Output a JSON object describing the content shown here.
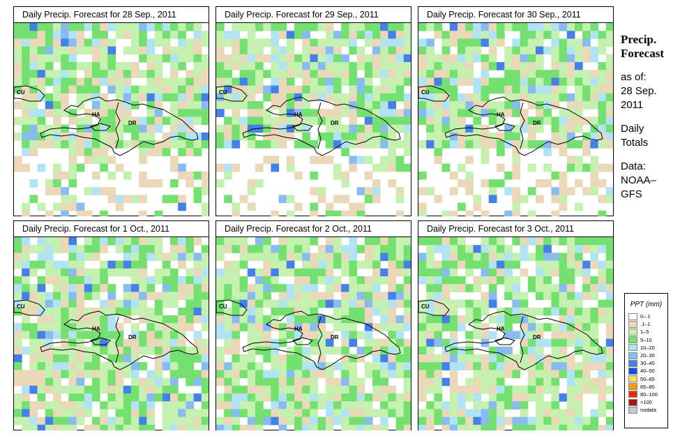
{
  "panels": [
    {
      "title": "Daily Precip. Forecast for  28 Sep., 2011",
      "labels": {
        "cu": "CU",
        "ha": "HA",
        "dr": "DR"
      }
    },
    {
      "title": "Daily Precip. Forecast for  29 Sep., 2011",
      "labels": {
        "cu": "CU",
        "ha": "HA",
        "dr": "DR"
      }
    },
    {
      "title": "Daily Precip. Forecast for  30 Sep., 2011",
      "labels": {
        "cu": "CU",
        "ha": "HA",
        "dr": "DR"
      }
    },
    {
      "title": "Daily Precip. Forecast for  1 Oct., 2011",
      "labels": {
        "cu": "CU",
        "ha": "HA",
        "dr": "DR"
      }
    },
    {
      "title": "Daily Precip. Forecast for  2 Oct., 2011",
      "labels": {
        "cu": "CU",
        "ha": "HA",
        "dr": "DR"
      }
    },
    {
      "title": "Daily Precip. Forecast for  3 Oct., 2011",
      "labels": {
        "cu": "CU",
        "ha": "HA",
        "dr": "DR"
      }
    }
  ],
  "sidebar": {
    "heading_line1": "Precip.",
    "heading_line2": "Forecast",
    "asof": "as of:",
    "date_line1": "28 Sep.",
    "date_line2": "2011",
    "totals_line1": "Daily",
    "totals_line2": "Totals",
    "data_line1": "Data:",
    "data_line2": "NOAA–",
    "data_line3": "GFS"
  },
  "legend": {
    "title": "PPT (mm)",
    "items": [
      {
        "label": "0–.1",
        "color": "#ffffff"
      },
      {
        "label": ".1–1",
        "color": "#ead8b8"
      },
      {
        "label": "1–5",
        "color": "#c4f0b0"
      },
      {
        "label": "5–10",
        "color": "#74e070"
      },
      {
        "label": "10–20",
        "color": "#b0e4f4"
      },
      {
        "label": "20–30",
        "color": "#88bcf0"
      },
      {
        "label": "30–40",
        "color": "#4480e8"
      },
      {
        "label": "40–50",
        "color": "#1850d8"
      },
      {
        "label": "50–65",
        "color": "#f4dc68"
      },
      {
        "label": "65–80",
        "color": "#f49c10"
      },
      {
        "label": "80–100",
        "color": "#e03010"
      },
      {
        "label": ">100",
        "color": "#a01818"
      },
      {
        "label": "nodata",
        "color": "#c8c8c8"
      }
    ]
  }
}
